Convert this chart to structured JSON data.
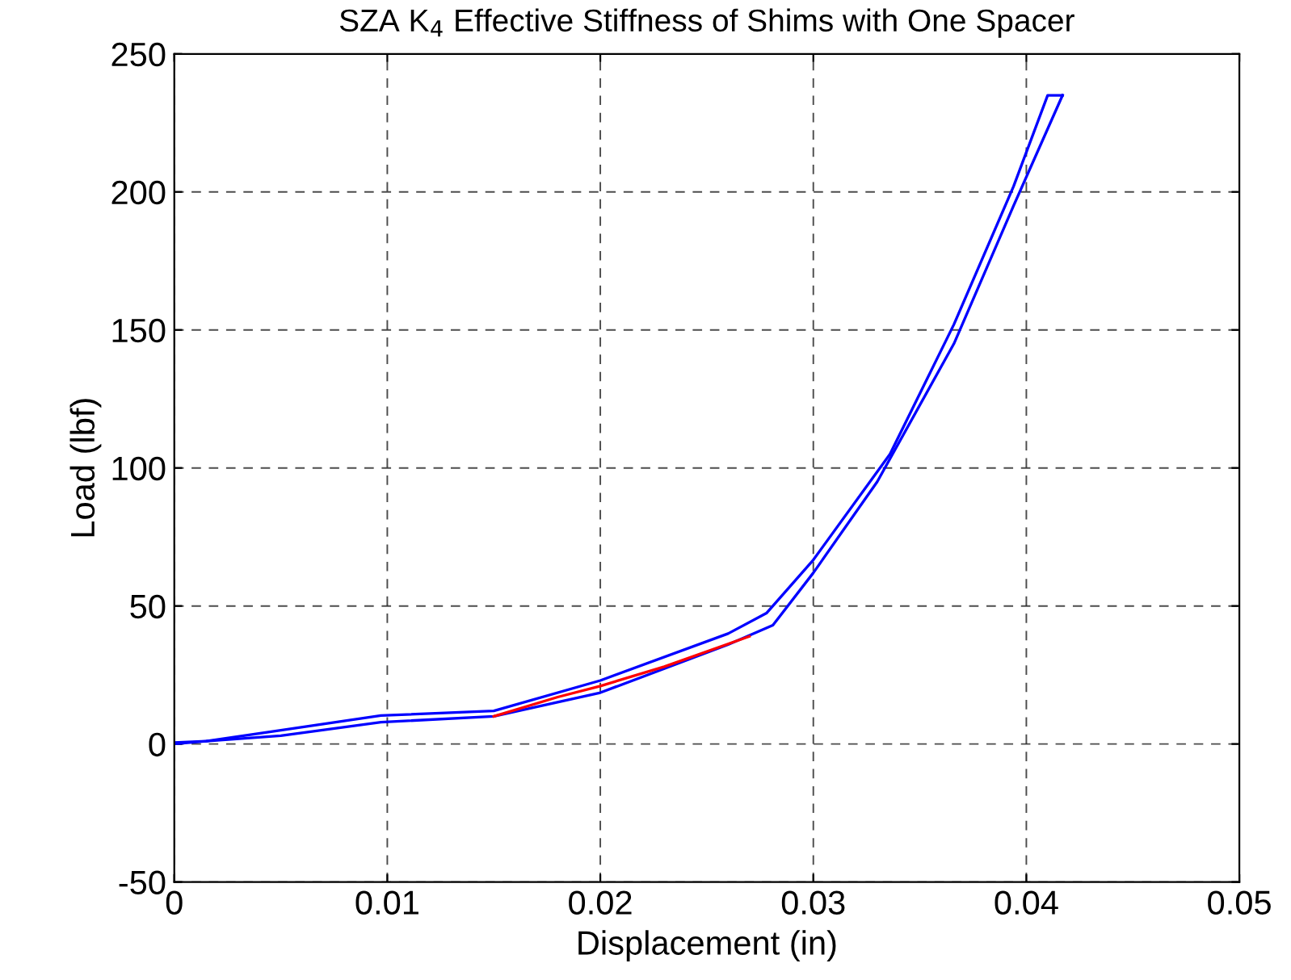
{
  "chart_data": {
    "type": "line",
    "title": "SZA K$_{4}$ Effective Stiffness of Shims with One Spacer",
    "xlabel": "Displacement (in)",
    "ylabel": "Load (lbf)",
    "xlim": [
      0,
      0.05
    ],
    "xticks": [
      0,
      0.01,
      0.02,
      0.03,
      0.04,
      0.05
    ],
    "ylim": [
      -50,
      250
    ],
    "yticks": [
      -50,
      0,
      50,
      100,
      150,
      200,
      250
    ],
    "grid": true,
    "line_style": "solid",
    "marker": "none",
    "legend": false,
    "series": [
      {
        "color": "#0000ff",
        "x": [
          0,
          0.0015,
          0.005,
          0.0097,
          0.015,
          0.02,
          0.026,
          0.0281,
          0.03,
          0.033,
          0.0366,
          0.0394,
          0.0417
        ],
        "values": [
          0,
          1,
          3,
          7.9,
          10,
          18.6,
          36,
          43,
          62,
          95,
          145,
          195,
          235
        ]
      },
      {
        "color": "#0000ff",
        "x": [
          0.0417,
          0.041,
          0.0394,
          0.0366,
          0.0336,
          0.03,
          0.0278,
          0.026,
          0.02,
          0.015,
          0.0097,
          0.005,
          0.0015,
          0
        ],
        "values": [
          235,
          235,
          202,
          152,
          105,
          66.7,
          47.4,
          40,
          23,
          12,
          10.3,
          5,
          1,
          0.5
        ]
      },
      {
        "color": "#ff0000",
        "x": [
          0.015,
          0.018,
          0.02,
          0.023,
          0.027
        ],
        "values": [
          10,
          17,
          21,
          28,
          39
        ]
      }
    ]
  }
}
